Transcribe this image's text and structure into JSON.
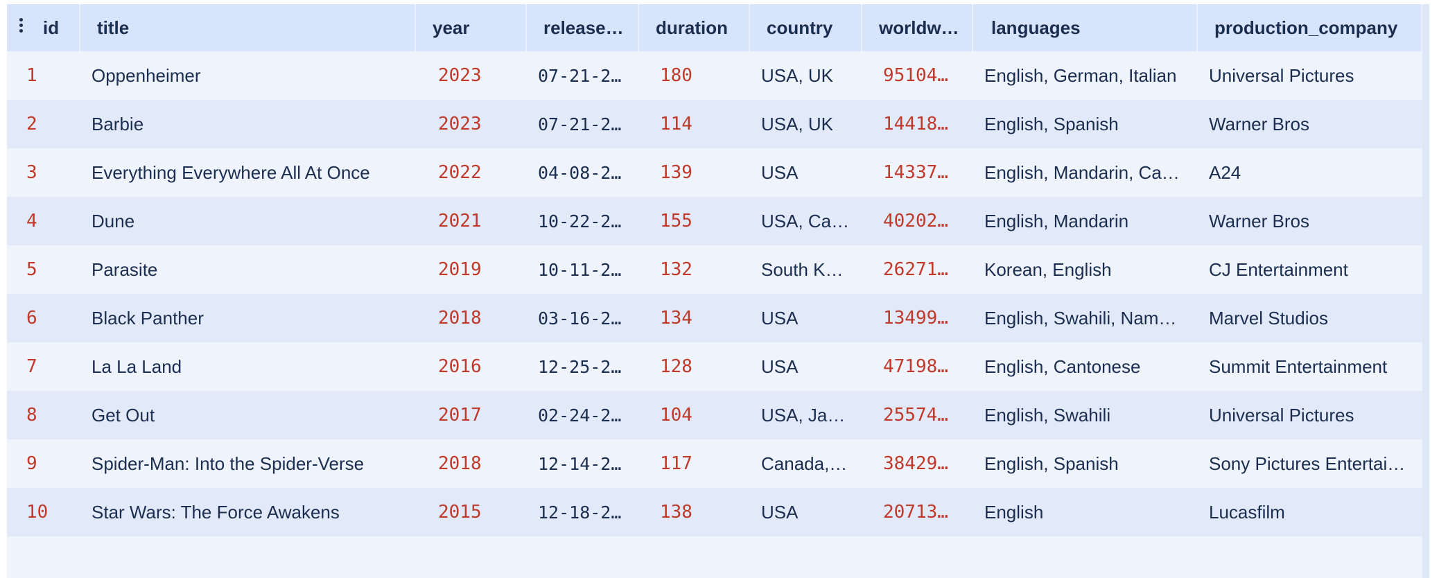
{
  "columns": [
    {
      "key": "id",
      "label": "id"
    },
    {
      "key": "title",
      "label": "title"
    },
    {
      "key": "year",
      "label": "year"
    },
    {
      "key": "release",
      "label": "release…"
    },
    {
      "key": "duration",
      "label": "duration"
    },
    {
      "key": "country",
      "label": "country"
    },
    {
      "key": "worldwide",
      "label": "worldw…"
    },
    {
      "key": "languages",
      "label": "languages"
    },
    {
      "key": "production_company",
      "label": "production_company"
    }
  ],
  "icons": {
    "column_menu": "vertical-ellipsis-icon"
  },
  "colors": {
    "header_bg": "#d8e4fb",
    "row_odd": "#eef3fc",
    "row_even": "#e2eaf9",
    "number_text": "#c0392b",
    "text": "#1c2e4f"
  },
  "rows": [
    {
      "id": "1",
      "title": "Oppenheimer",
      "year": "2023",
      "release": "07-21-2…",
      "duration": "180",
      "country": "USA, UK",
      "worldwide": "95104…",
      "languages": "English, German, Italian",
      "production_company": "Universal Pictures"
    },
    {
      "id": "2",
      "title": "Barbie",
      "year": "2023",
      "release": "07-21-2…",
      "duration": "114",
      "country": "USA, UK",
      "worldwide": "14418…",
      "languages": "English, Spanish",
      "production_company": "Warner Bros"
    },
    {
      "id": "3",
      "title": "Everything Everywhere All At Once",
      "year": "2022",
      "release": "04-08-2…",
      "duration": "139",
      "country": "USA",
      "worldwide": "14337…",
      "languages": "English, Mandarin, Ca…",
      "production_company": "A24"
    },
    {
      "id": "4",
      "title": "Dune",
      "year": "2021",
      "release": "10-22-2…",
      "duration": "155",
      "country": "USA, Ca…",
      "worldwide": "40202…",
      "languages": "English, Mandarin",
      "production_company": "Warner Bros"
    },
    {
      "id": "5",
      "title": "Parasite",
      "year": "2019",
      "release": "10-11-20…",
      "duration": "132",
      "country": "South K…",
      "worldwide": "26271…",
      "languages": "Korean, English",
      "production_company": "CJ Entertainment"
    },
    {
      "id": "6",
      "title": "Black Panther",
      "year": "2018",
      "release": "03-16-2…",
      "duration": "134",
      "country": "USA",
      "worldwide": "13499…",
      "languages": "English, Swahili, Nam…",
      "production_company": "Marvel Studios"
    },
    {
      "id": "7",
      "title": "La La Land",
      "year": "2016",
      "release": "12-25-2…",
      "duration": "128",
      "country": "USA",
      "worldwide": "47198…",
      "languages": "English, Cantonese",
      "production_company": "Summit Entertainment"
    },
    {
      "id": "8",
      "title": "Get Out",
      "year": "2017",
      "release": "02-24-2…",
      "duration": "104",
      "country": "USA, Ja…",
      "worldwide": "25574…",
      "languages": "English, Swahili",
      "production_company": "Universal Pictures"
    },
    {
      "id": "9",
      "title": "Spider-Man: Into the Spider-Verse",
      "year": "2018",
      "release": "12-14-2…",
      "duration": "117",
      "country": "Canada,…",
      "worldwide": "38429…",
      "languages": "English, Spanish",
      "production_company": "Sony Pictures Entertai…"
    },
    {
      "id": "10",
      "title": "Star Wars: The Force Awakens",
      "year": "2015",
      "release": "12-18-2…",
      "duration": "138",
      "country": "USA",
      "worldwide": "20713…",
      "languages": "English",
      "production_company": "Lucasfilm"
    }
  ]
}
